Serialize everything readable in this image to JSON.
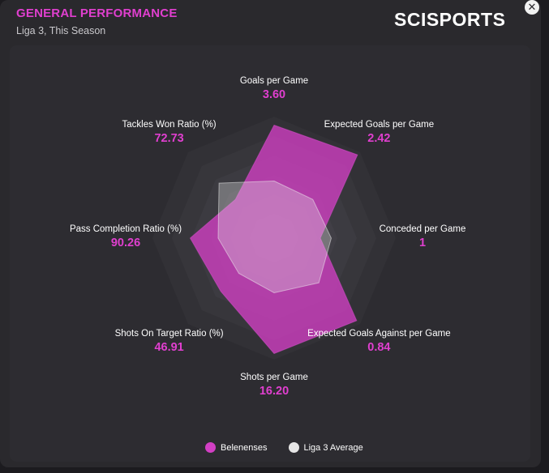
{
  "header": {
    "title": "GENERAL PERFORMANCE",
    "subtitle": "Liga 3, This Season",
    "brand": "SCISPORTS"
  },
  "close_icon": "close-icon",
  "colors": {
    "accent": "#e03fcf",
    "team_fill": "#d23fc4",
    "average_fill": "#e6e6e6",
    "grid_fill": "#3a393e"
  },
  "chart_data": {
    "type": "radar",
    "axes": [
      {
        "label": "Goals per Game",
        "value": "3.60"
      },
      {
        "label": "Expected Goals per Game",
        "value": "2.42"
      },
      {
        "label": "Conceded per Game",
        "value": "1"
      },
      {
        "label": "Expected Goals Against per Game",
        "value": "0.84"
      },
      {
        "label": "Shots per Game",
        "value": "16.20"
      },
      {
        "label": "Shots On Target Ratio (%)",
        "value": "46.91"
      },
      {
        "label": "Pass Completion Ratio (%)",
        "value": "90.26"
      },
      {
        "label": "Tackles Won Ratio (%)",
        "value": "72.73"
      }
    ],
    "scale_max": 1.0,
    "series": [
      {
        "name": "Belenenses",
        "values": [
          0.93,
          0.97,
          0.38,
          0.96,
          0.95,
          0.62,
          0.69,
          0.45
        ]
      },
      {
        "name": "Liga 3 Average",
        "values": [
          0.47,
          0.45,
          0.47,
          0.52,
          0.45,
          0.41,
          0.46,
          0.64
        ]
      }
    ],
    "legend": [
      "Belenenses",
      "Liga 3 Average"
    ],
    "legend_position": "bottom"
  }
}
